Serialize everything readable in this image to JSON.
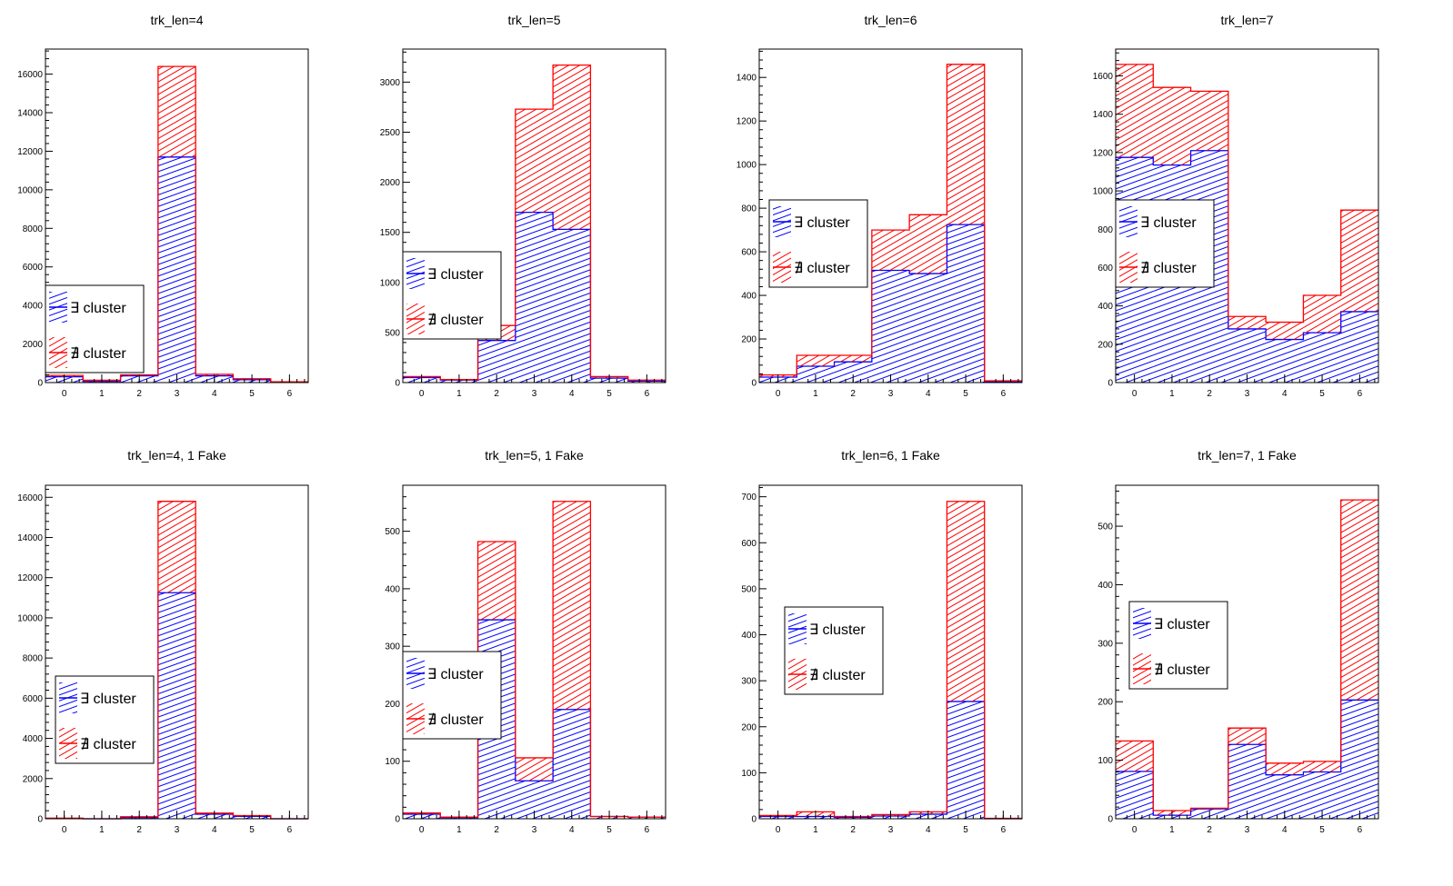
{
  "colors": {
    "exists": "#0000ff",
    "not_exists": "#ff0000",
    "axis": "#000000"
  },
  "chart_data": [
    {
      "type": "bar",
      "stacked": true,
      "title": "trk_len=4",
      "categories": [
        "0",
        "1",
        "2",
        "3",
        "4",
        "5",
        "6"
      ],
      "ylim": [
        0,
        17300
      ],
      "yticks": [
        0,
        2000,
        4000,
        6000,
        8000,
        10000,
        12000,
        14000,
        16000
      ],
      "legend_placement": "bottom-left",
      "series": [
        {
          "name": "∃ cluster",
          "color": "#0000ff",
          "values": [
            300,
            60,
            350,
            11700,
            350,
            150,
            30
          ]
        },
        {
          "name": "∄ cluster",
          "color": "#ff0000",
          "values": [
            70,
            60,
            50,
            4700,
            80,
            50,
            10
          ]
        }
      ]
    },
    {
      "type": "bar",
      "stacked": true,
      "title": "trk_len=5",
      "categories": [
        "0",
        "1",
        "2",
        "3",
        "4",
        "5",
        "6"
      ],
      "ylim": [
        0,
        3330
      ],
      "yticks": [
        0,
        500,
        1000,
        1500,
        2000,
        2500,
        3000
      ],
      "legend_placement": "middle-left",
      "series": [
        {
          "name": "∃ cluster",
          "color": "#0000ff",
          "values": [
            50,
            25,
            420,
            1700,
            1530,
            45,
            15
          ]
        },
        {
          "name": "∄ cluster",
          "color": "#ff0000",
          "values": [
            10,
            5,
            150,
            1030,
            1640,
            15,
            10
          ]
        }
      ]
    },
    {
      "type": "bar",
      "stacked": true,
      "title": "trk_len=6",
      "categories": [
        "0",
        "1",
        "2",
        "3",
        "4",
        "5",
        "6"
      ],
      "ylim": [
        0,
        1530
      ],
      "yticks": [
        0,
        200,
        400,
        600,
        800,
        1000,
        1200,
        1400
      ],
      "legend_placement": "middle-left",
      "series": [
        {
          "name": "∃ cluster",
          "color": "#0000ff",
          "values": [
            25,
            75,
            95,
            515,
            500,
            725,
            5
          ]
        },
        {
          "name": "∄ cluster",
          "color": "#ff0000",
          "values": [
            10,
            50,
            30,
            185,
            270,
            735,
            3
          ]
        }
      ]
    },
    {
      "type": "bar",
      "stacked": true,
      "title": "trk_len=7",
      "categories": [
        "0",
        "1",
        "2",
        "3",
        "4",
        "5",
        "6"
      ],
      "ylim": [
        0,
        1740
      ],
      "yticks": [
        0,
        200,
        400,
        600,
        800,
        1000,
        1200,
        1400,
        1600
      ],
      "legend_placement": "middle-left",
      "series": [
        {
          "name": "∃ cluster",
          "color": "#0000ff",
          "values": [
            1175,
            1135,
            1210,
            280,
            225,
            260,
            370
          ]
        },
        {
          "name": "∄ cluster",
          "color": "#ff0000",
          "values": [
            485,
            405,
            310,
            65,
            90,
            195,
            530
          ]
        }
      ]
    },
    {
      "type": "bar",
      "stacked": true,
      "title": "trk_len=4, 1 Fake",
      "categories": [
        "0",
        "1",
        "2",
        "3",
        "4",
        "5",
        "6"
      ],
      "ylim": [
        0,
        16600
      ],
      "yticks": [
        0,
        2000,
        4000,
        6000,
        8000,
        10000,
        12000,
        14000,
        16000
      ],
      "legend_placement": "middle-left",
      "series": [
        {
          "name": "∃ cluster",
          "color": "#0000ff",
          "values": [
            20,
            0,
            60,
            11250,
            230,
            120,
            0
          ]
        },
        {
          "name": "∄ cluster",
          "color": "#ff0000",
          "values": [
            5,
            0,
            40,
            4550,
            50,
            40,
            0
          ]
        }
      ]
    },
    {
      "type": "bar",
      "stacked": true,
      "title": "trk_len=5, 1 Fake",
      "categories": [
        "0",
        "1",
        "2",
        "3",
        "4",
        "5",
        "6"
      ],
      "ylim": [
        0,
        580
      ],
      "yticks": [
        0,
        100,
        200,
        300,
        400,
        500
      ],
      "legend_placement": "middle-left",
      "series": [
        {
          "name": "∃ cluster",
          "color": "#0000ff",
          "values": [
            8,
            2,
            346,
            66,
            190,
            4,
            3
          ]
        },
        {
          "name": "∄ cluster",
          "color": "#ff0000",
          "values": [
            2,
            1,
            136,
            40,
            362,
            0,
            0
          ]
        }
      ]
    },
    {
      "type": "bar",
      "stacked": true,
      "title": "trk_len=6, 1 Fake",
      "categories": [
        "0",
        "1",
        "2",
        "3",
        "4",
        "5",
        "6"
      ],
      "ylim": [
        0,
        725
      ],
      "yticks": [
        0,
        100,
        200,
        300,
        400,
        500,
        600,
        700
      ],
      "legend_placement": "middle-left",
      "series": [
        {
          "name": "∃ cluster",
          "color": "#0000ff",
          "values": [
            5,
            5,
            3,
            6,
            10,
            255,
            0
          ]
        },
        {
          "name": "∄ cluster",
          "color": "#ff0000",
          "values": [
            2,
            10,
            2,
            3,
            5,
            435,
            1
          ]
        }
      ]
    },
    {
      "type": "bar",
      "stacked": true,
      "title": "trk_len=7, 1 Fake",
      "categories": [
        "0",
        "1",
        "2",
        "3",
        "4",
        "5",
        "6"
      ],
      "ylim": [
        0,
        570
      ],
      "yticks": [
        0,
        100,
        200,
        300,
        400,
        500
      ],
      "legend_placement": "middle-left",
      "series": [
        {
          "name": "∃ cluster",
          "color": "#0000ff",
          "values": [
            81,
            6,
            17,
            127,
            75,
            80,
            203
          ]
        },
        {
          "name": "∄ cluster",
          "color": "#ff0000",
          "values": [
            52,
            8,
            1,
            28,
            20,
            18,
            342
          ]
        }
      ]
    }
  ]
}
